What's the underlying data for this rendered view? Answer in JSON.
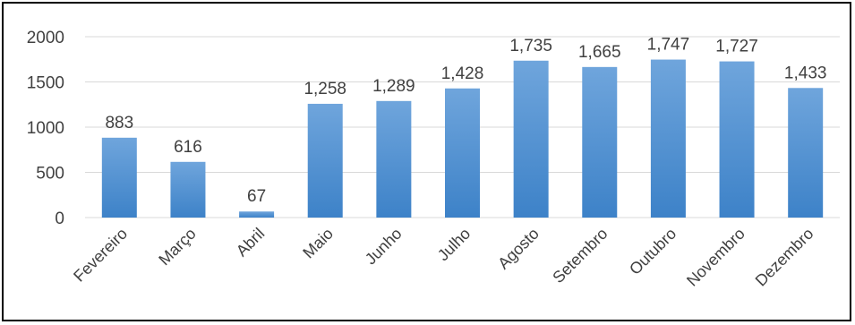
{
  "chart_data": {
    "type": "bar",
    "title": "",
    "xlabel": "",
    "ylabel": "",
    "categories": [
      "Fevereiro",
      "Março",
      "Abril",
      "Maio",
      "Junho",
      "Julho",
      "Agosto",
      "Setembro",
      "Outubro",
      "Novembro",
      "Dezembro"
    ],
    "values": [
      883,
      616,
      67,
      1258,
      1289,
      1428,
      1735,
      1665,
      1747,
      1727,
      1433
    ],
    "data_labels": [
      "883",
      "616",
      "67",
      "1,258",
      "1,289",
      "1,428",
      "1,735",
      "1,665",
      "1,747",
      "1,727",
      "1,433"
    ],
    "ylim": [
      0,
      2000
    ],
    "yticks": [
      0,
      500,
      1000,
      1500,
      2000
    ],
    "grid": true,
    "legend": "none",
    "colors": {
      "bar_top": "#6fa5dc",
      "bar_bottom": "#3d82c8",
      "grid": "#d9d9d9",
      "text": "#404040"
    }
  }
}
